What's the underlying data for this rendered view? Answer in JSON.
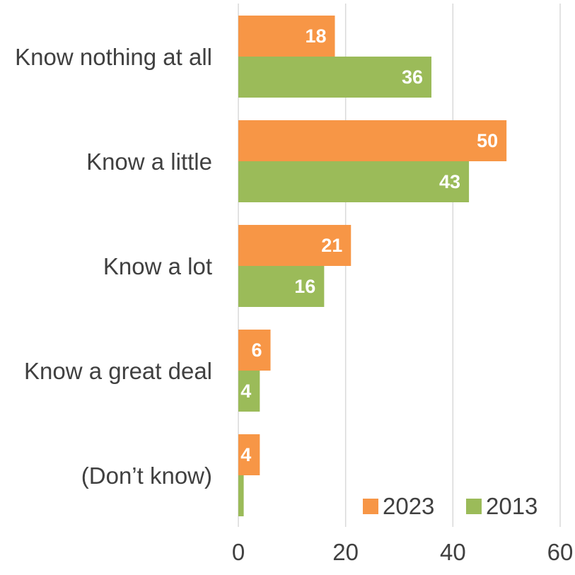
{
  "chart_data": {
    "type": "bar",
    "orientation": "horizontal",
    "categories": [
      "Know nothing at all",
      "Know a little",
      "Know a lot",
      "Know a great deal",
      "(Don’t know)"
    ],
    "series": [
      {
        "name": "2023",
        "color": "#f79646",
        "values": [
          18,
          50,
          21,
          6,
          4
        ],
        "labels": [
          "18",
          "50",
          "21",
          "6",
          "4"
        ]
      },
      {
        "name": "2013",
        "color": "#9bbb59",
        "values": [
          36,
          43,
          16,
          4,
          1
        ],
        "labels": [
          "36",
          "43",
          "16",
          "4",
          ""
        ]
      }
    ],
    "xlim": [
      0,
      60
    ],
    "xticks": [
      "0",
      "20",
      "40",
      "60"
    ],
    "grid": true,
    "legend": "bottom-right"
  }
}
